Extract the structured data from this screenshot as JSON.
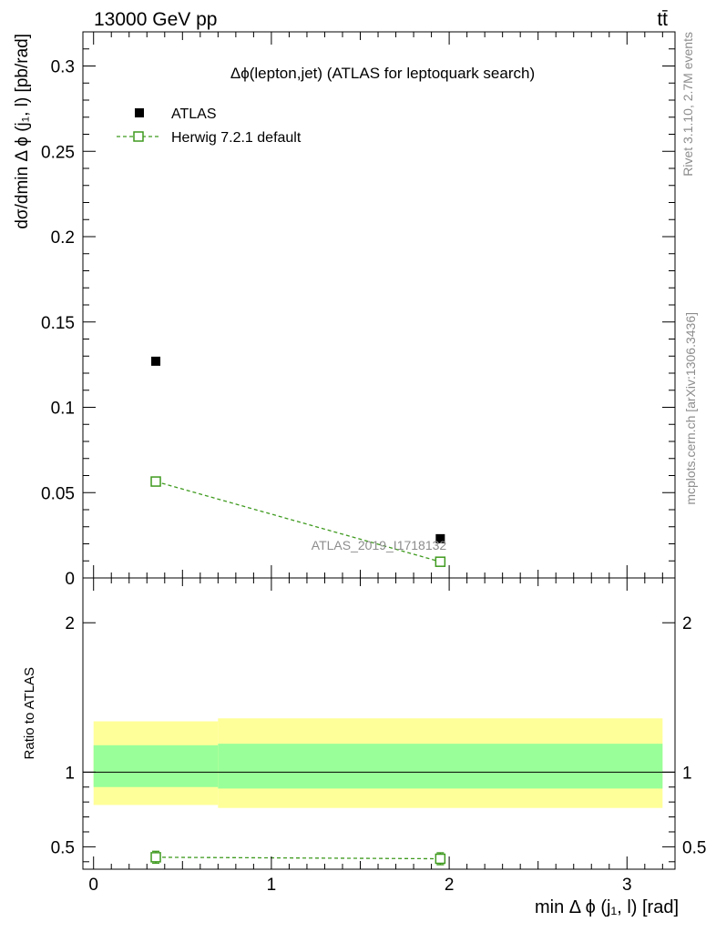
{
  "header": {
    "energy_label": "13000 GeV pp",
    "process_label": "tt̄"
  },
  "side_text": {
    "rivet": "Rivet 3.1.10,  2.7M events",
    "mcplots": "mcplots.cern.ch [arXiv:1306.3436]"
  },
  "watermark": "ATLAS_2019_I1718132",
  "colors": {
    "data": "#000000",
    "mc": "#3f9a1f",
    "band_inner": "#99ff99",
    "band_outer": "#ffff99"
  },
  "chart_data": [
    {
      "type": "scatter",
      "title": "Δϕ(lepton,jet) (ATLAS for leptoquark search)",
      "xlabel": "",
      "ylabel": "dσ/dmin Δ ϕ (j₁, l) [pb/rad]",
      "xlim": [
        -0.06,
        3.27
      ],
      "ylim": [
        0,
        0.32
      ],
      "xticks": [
        0,
        1,
        2,
        3
      ],
      "yticks": [
        0,
        0.05,
        0.1,
        0.15,
        0.2,
        0.25,
        0.3
      ],
      "ytick_labels": [
        "0",
        "0.05",
        "0.1",
        "0.15",
        "0.2",
        "0.25",
        "0.3"
      ],
      "legend_placement": "top-left",
      "series": [
        {
          "name": "ATLAS",
          "x": [
            0.35,
            1.95
          ],
          "y": [
            0.127,
            0.023
          ],
          "yerr": [
            0.0015,
            0.0008
          ]
        },
        {
          "name": "Herwig 7.2.1 default",
          "x": [
            0.35,
            1.95
          ],
          "y": [
            0.0565,
            0.0095
          ],
          "yerr": [
            0.0025,
            0.001
          ]
        }
      ]
    },
    {
      "type": "line",
      "title": "",
      "xlabel": "min Δ ϕ (j₁, l) [rad]",
      "ylabel": "Ratio to ATLAS",
      "xlim": [
        -0.06,
        3.27
      ],
      "ylim": [
        0.35,
        2.3
      ],
      "xticks": [
        0,
        1,
        2,
        3
      ],
      "xtick_labels": [
        "0",
        "1",
        "2",
        "3"
      ],
      "yticks": [
        0.5,
        1,
        2
      ],
      "ytick_labels": [
        "0.5",
        "1",
        "2"
      ],
      "bands": [
        {
          "x0": 0.0,
          "x1": 0.7,
          "inner": [
            0.9,
            1.18
          ],
          "outer": [
            0.78,
            1.34
          ]
        },
        {
          "x0": 0.7,
          "x1": 3.2,
          "inner": [
            0.89,
            1.19
          ],
          "outer": [
            0.76,
            1.36
          ]
        }
      ],
      "series": [
        {
          "name": "Herwig 7.2.1 default",
          "x": [
            0.35,
            1.95
          ],
          "y": [
            0.43,
            0.42
          ],
          "yerr": [
            0.04,
            0.04
          ]
        }
      ]
    }
  ]
}
